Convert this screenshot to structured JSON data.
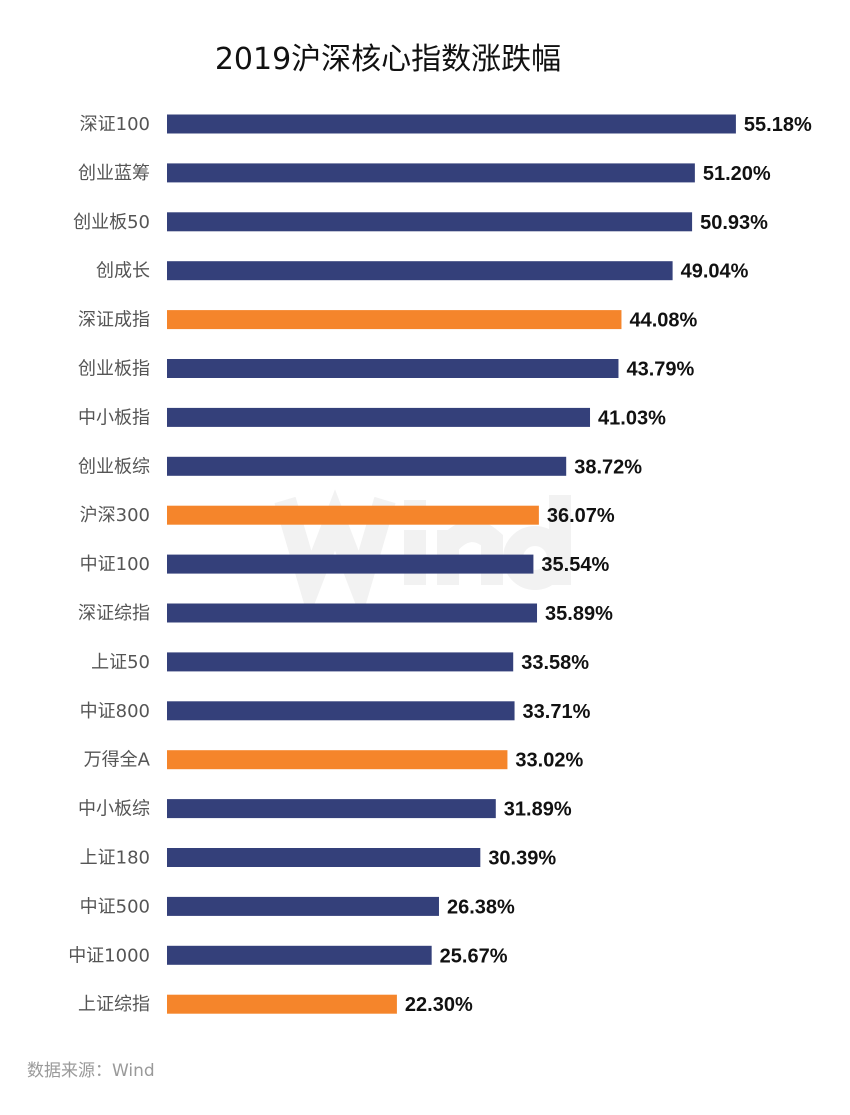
{
  "chart_data": {
    "type": "bar",
    "orientation": "horizontal",
    "title": "2019沪深核心指数涨跌幅",
    "categories": [
      "深证100",
      "创业蓝筹",
      "创业板50",
      "创成长",
      "深证成指",
      "创业板指",
      "中小板指",
      "创业板综",
      "沪深300",
      "中证100",
      "深证综指",
      "上证50",
      "中证800",
      "万得全A",
      "中小板综",
      "上证180",
      "中证500",
      "中证1000",
      "上证综指"
    ],
    "values": [
      55.18,
      51.2,
      50.93,
      49.04,
      44.08,
      43.79,
      41.03,
      38.72,
      36.07,
      35.54,
      35.89,
      33.58,
      33.71,
      33.02,
      31.89,
      30.39,
      26.38,
      25.67,
      22.3
    ],
    "value_labels": [
      "55.18%",
      "51.20%",
      "50.93%",
      "49.04%",
      "44.08%",
      "43.79%",
      "41.03%",
      "38.72%",
      "36.07%",
      "35.54%",
      "35.89%",
      "33.58%",
      "33.71%",
      "33.02%",
      "31.89%",
      "30.39%",
      "26.38%",
      "25.67%",
      "22.30%"
    ],
    "highlighted": [
      "深证成指",
      "沪深300",
      "万得全A",
      "上证综指"
    ],
    "unit": "%",
    "xlim": [
      0,
      60
    ],
    "grid": false,
    "colors": {
      "default": "#34407a",
      "highlight": "#f5852b"
    },
    "source": "数据来源：Wind",
    "watermark": "Wind"
  }
}
